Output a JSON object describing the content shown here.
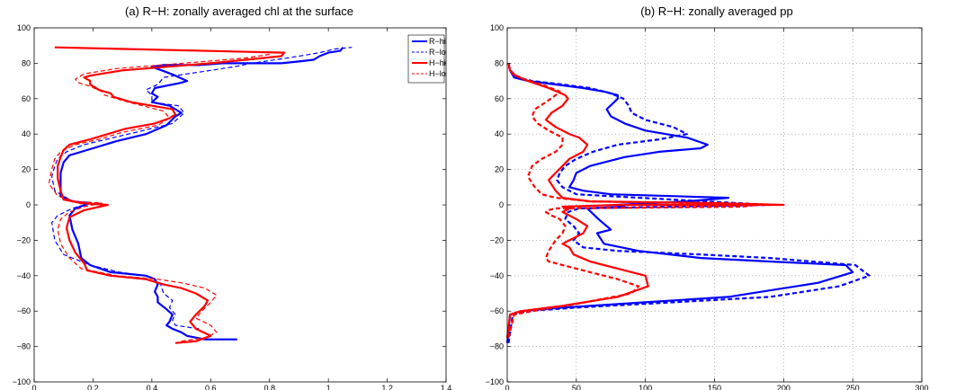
{
  "chart_data": [
    {
      "type": "line",
      "title": "(a) R−H: zonally averaged chl at the surface",
      "xlabel": "",
      "ylabel": "",
      "xlim": [
        0,
        1.4
      ],
      "ylim": [
        -100,
        100
      ],
      "xticks": [
        0,
        0.2,
        0.4,
        0.6,
        0.8,
        1,
        1.2,
        1.4
      ],
      "xtick_labels": [
        "0",
        "0.2",
        "0.4",
        "0.6",
        "0.8",
        "1",
        "1.2",
        "1.4"
      ],
      "yticks": [
        -100,
        -80,
        -60,
        -40,
        -20,
        0,
        20,
        40,
        60,
        80,
        100
      ],
      "ytick_labels": [
        "−100",
        "−80",
        "−60",
        "−40",
        "−20",
        "0",
        "20",
        "40",
        "60",
        "80",
        "100"
      ],
      "grid": false,
      "legend_position": "top-right",
      "series": [
        {
          "name": "R−hi",
          "color": "#0000ff",
          "style": "solid",
          "width": 2.2,
          "x": [
            0.69,
            0.58,
            0.52,
            0.5,
            0.47,
            0.45,
            0.46,
            0.47,
            0.45,
            0.42,
            0.42,
            0.41,
            0.42,
            0.41,
            0.38,
            0.26,
            0.19,
            0.16,
            0.15,
            0.13,
            0.12,
            0.14,
            0.19,
            0.13,
            0.09,
            0.09,
            0.09,
            0.1,
            0.12,
            0.2,
            0.28,
            0.38,
            0.45,
            0.48,
            0.5,
            0.48,
            0.46,
            0.4,
            0.42,
            0.4,
            0.41,
            0.5,
            0.52,
            0.48,
            0.45,
            0.4,
            0.44,
            0.56,
            0.64,
            0.72,
            0.78,
            0.84,
            0.9,
            0.95,
            0.97,
            1.0,
            1.04,
            1.05
          ],
          "y": [
            -76,
            -76,
            -74,
            -72,
            -70,
            -68,
            -66,
            -62,
            -59,
            -55,
            -52,
            -49,
            -45,
            -42,
            -40,
            -38,
            -34,
            -30,
            -22,
            -14,
            -6,
            -2,
            1,
            2,
            5,
            10,
            18,
            24,
            28,
            32,
            36,
            40,
            45,
            50,
            52,
            54,
            56,
            58,
            61,
            63,
            66,
            69,
            70,
            73,
            75,
            78,
            79,
            79,
            80,
            80,
            80,
            80,
            81,
            82,
            84,
            86,
            87,
            89
          ]
        },
        {
          "name": "R−lo",
          "color": "#0000ff",
          "style": "dashed",
          "width": 1.2,
          "x": [
            0.56,
            0.48,
            0.47,
            0.48,
            0.46,
            0.47,
            0.44,
            0.43,
            0.41,
            0.38,
            0.29,
            0.19,
            0.1,
            0.07,
            0.06,
            0.08,
            0.13,
            0.17,
            0.12,
            0.07,
            0.06,
            0.07,
            0.08,
            0.11,
            0.17,
            0.27,
            0.37,
            0.47,
            0.51,
            0.49,
            0.4,
            0.4,
            0.38,
            0.42,
            0.44,
            0.52,
            0.6,
            0.68,
            0.74,
            0.82,
            0.9,
            0.97,
            1.02,
            1.08
          ],
          "y": [
            -70,
            -68,
            -65,
            -62,
            -58,
            -54,
            -50,
            -45,
            -42,
            -40,
            -38,
            -34,
            -28,
            -20,
            -10,
            -6,
            -2,
            0,
            3,
            8,
            16,
            22,
            26,
            30,
            34,
            38,
            42,
            46,
            52,
            56,
            58,
            62,
            65,
            68,
            72,
            74,
            76,
            78,
            80,
            82,
            84,
            86,
            88,
            89
          ]
        },
        {
          "name": "H−hi",
          "color": "#ff0000",
          "style": "solid",
          "width": 2.2,
          "x": [
            0.48,
            0.55,
            0.6,
            0.55,
            0.53,
            0.55,
            0.58,
            0.59,
            0.55,
            0.5,
            0.44,
            0.38,
            0.26,
            0.18,
            0.17,
            0.14,
            0.12,
            0.11,
            0.12,
            0.17,
            0.25,
            0.16,
            0.1,
            0.09,
            0.08,
            0.08,
            0.09,
            0.1,
            0.12,
            0.19,
            0.25,
            0.31,
            0.41,
            0.46,
            0.48,
            0.47,
            0.33,
            0.27,
            0.26,
            0.22,
            0.19,
            0.19,
            0.17,
            0.19,
            0.3,
            0.45,
            0.6,
            0.72,
            0.84,
            0.85,
            0.07
          ],
          "y": [
            -78,
            -77,
            -74,
            -70,
            -66,
            -62,
            -57,
            -54,
            -50,
            -47,
            -45,
            -42,
            -40,
            -37,
            -33,
            -27,
            -20,
            -13,
            -7,
            -3,
            0,
            1,
            3,
            8,
            15,
            22,
            27,
            31,
            34,
            37,
            40,
            43,
            46,
            49,
            51,
            54,
            58,
            61,
            63,
            65,
            68,
            70,
            72,
            73,
            76,
            78,
            80,
            82,
            84,
            86,
            89
          ]
        },
        {
          "name": "H−lo",
          "color": "#ff0000",
          "style": "dashed",
          "width": 1.2,
          "x": [
            0.5,
            0.58,
            0.62,
            0.6,
            0.55,
            0.57,
            0.6,
            0.62,
            0.58,
            0.5,
            0.42,
            0.28,
            0.16,
            0.12,
            0.09,
            0.08,
            0.09,
            0.12,
            0.17,
            0.23,
            0.14,
            0.08,
            0.05,
            0.06,
            0.07,
            0.09,
            0.14,
            0.22,
            0.3,
            0.42,
            0.46,
            0.44,
            0.32,
            0.24,
            0.23,
            0.19,
            0.15,
            0.14,
            0.17,
            0.28,
            0.43,
            0.58,
            0.72,
            0.8
          ],
          "y": [
            -77,
            -75,
            -72,
            -68,
            -64,
            -60,
            -55,
            -51,
            -47,
            -44,
            -42,
            -40,
            -36,
            -30,
            -22,
            -14,
            -8,
            -4,
            -1,
            1,
            2,
            5,
            12,
            20,
            26,
            30,
            34,
            37,
            41,
            45,
            49,
            53,
            58,
            62,
            64,
            67,
            69,
            71,
            74,
            77,
            79,
            81,
            83,
            85
          ]
        }
      ]
    },
    {
      "type": "line",
      "title": "(b) R−H: zonally averaged pp",
      "xlabel": "",
      "ylabel": "",
      "xlim": [
        0,
        300
      ],
      "ylim": [
        -100,
        100
      ],
      "xticks": [
        0,
        50,
        100,
        150,
        200,
        250,
        300
      ],
      "xtick_labels": [
        "0",
        "50",
        "100",
        "150",
        "200",
        "250",
        "300"
      ],
      "yticks": [
        -100,
        -80,
        -60,
        -40,
        -20,
        0,
        20,
        40,
        60,
        80,
        100
      ],
      "ytick_labels": [
        "−100",
        "−80",
        "−60",
        "−40",
        "−20",
        "0",
        "20",
        "40",
        "60",
        "80",
        "100"
      ],
      "grid": true,
      "series": [
        {
          "name": "R−hi",
          "color": "#0000ff",
          "style": "solid",
          "width": 2.2,
          "x": [
            0,
            2,
            10,
            40,
            100,
            160,
            225,
            250,
            245,
            190,
            140,
            95,
            70,
            65,
            75,
            72,
            66,
            58,
            85,
            80,
            130,
            160,
            75,
            55,
            45,
            48,
            50,
            60,
            70,
            85,
            110,
            140,
            145,
            130,
            100,
            85,
            75,
            72,
            76,
            80,
            80,
            70,
            55,
            35,
            15,
            5,
            2,
            1
          ],
          "y": [
            -78,
            -62,
            -60,
            -58,
            -55,
            -52,
            -44,
            -38,
            -34,
            -32,
            -30,
            -26,
            -22,
            -16,
            -14,
            -12,
            -8,
            -2,
            -1,
            0,
            2,
            4,
            6,
            8,
            10,
            14,
            18,
            22,
            24,
            27,
            30,
            32,
            34,
            38,
            42,
            46,
            50,
            54,
            57,
            60,
            62,
            64,
            66,
            68,
            70,
            72,
            76,
            80
          ]
        },
        {
          "name": "R−lo",
          "color": "#0000ff",
          "style": "dashed",
          "width": 2.2,
          "x": [
            1,
            4,
            14,
            50,
            120,
            190,
            240,
            262,
            252,
            190,
            140,
            80,
            55,
            48,
            52,
            48,
            42,
            44,
            52,
            190,
            120,
            50,
            40,
            36,
            38,
            42,
            50,
            62,
            80,
            110,
            130,
            120,
            100,
            90,
            88,
            84,
            75,
            60,
            40,
            18,
            8,
            2
          ],
          "y": [
            -78,
            -62,
            -60,
            -58,
            -55,
            -52,
            -46,
            -40,
            -34,
            -30,
            -28,
            -26,
            -24,
            -20,
            -16,
            -12,
            -8,
            -4,
            -2,
            0,
            3,
            6,
            10,
            14,
            18,
            22,
            26,
            30,
            34,
            37,
            40,
            44,
            48,
            52,
            56,
            60,
            63,
            66,
            68,
            70,
            72,
            76
          ]
        },
        {
          "name": "H−hi",
          "color": "#ff0000",
          "style": "solid",
          "width": 2.2,
          "x": [
            0,
            2,
            10,
            40,
            80,
            102,
            100,
            80,
            60,
            48,
            45,
            40,
            45,
            50,
            55,
            58,
            50,
            40,
            45,
            40,
            80,
            200,
            150,
            60,
            40,
            35,
            30,
            35,
            40,
            45,
            55,
            58,
            52,
            45,
            35,
            28,
            32,
            40,
            44,
            42,
            30,
            15,
            6,
            2,
            1
          ],
          "y": [
            -75,
            -62,
            -60,
            -57,
            -52,
            -46,
            -40,
            -36,
            -32,
            -28,
            -24,
            -22,
            -20,
            -18,
            -16,
            -12,
            -8,
            -4,
            -2,
            -1,
            0,
            0,
            1,
            2,
            4,
            8,
            14,
            18,
            22,
            26,
            30,
            34,
            38,
            40,
            44,
            48,
            52,
            56,
            60,
            62,
            66,
            70,
            73,
            76,
            80
          ]
        },
        {
          "name": "H−lo",
          "color": "#ff0000",
          "style": "dashed",
          "width": 2.2,
          "x": [
            1,
            5,
            18,
            50,
            90,
            95,
            80,
            60,
            40,
            30,
            28,
            30,
            35,
            40,
            42,
            38,
            32,
            28,
            30,
            35,
            170,
            180,
            130,
            60,
            35,
            25,
            20,
            15,
            18,
            25,
            35,
            40,
            40,
            30,
            22,
            18,
            20,
            28,
            35,
            38,
            25,
            12,
            4,
            1
          ],
          "y": [
            -75,
            -62,
            -60,
            -56,
            -50,
            -46,
            -42,
            -38,
            -34,
            -32,
            -30,
            -26,
            -20,
            -16,
            -12,
            -8,
            -6,
            -4,
            -3,
            -2,
            -1,
            0,
            1,
            2,
            4,
            6,
            10,
            16,
            22,
            26,
            30,
            34,
            38,
            42,
            46,
            50,
            54,
            58,
            62,
            64,
            68,
            71,
            74,
            78
          ]
        }
      ]
    }
  ]
}
